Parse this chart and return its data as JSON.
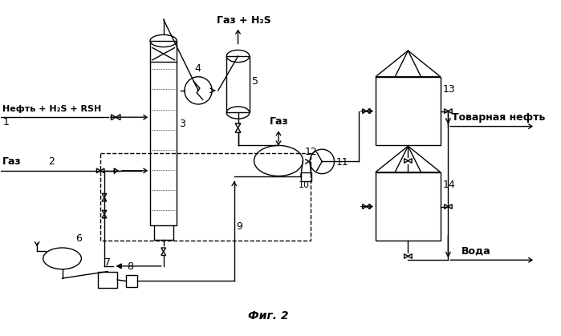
{
  "background_color": "#ffffff",
  "text_color": "#000000",
  "label_neft": "Нефть + H₂S + RSH",
  "label_gaz_in": "Газ",
  "label_gaz_top": "Газ + H₂S",
  "label_gaz_mid": "Газ",
  "label_tovarnaya": "Товарная нефть",
  "label_voda": "Вода",
  "label_fig": "Фиг. 2",
  "num1": "1",
  "num2": "2",
  "num3": "3",
  "num4": "4",
  "num5": "5",
  "num6": "6",
  "num7": "7",
  "num8": "8",
  "num9": "9",
  "num10": "10",
  "num11": "11",
  "num12": "12",
  "num13": "13",
  "num14": "14"
}
